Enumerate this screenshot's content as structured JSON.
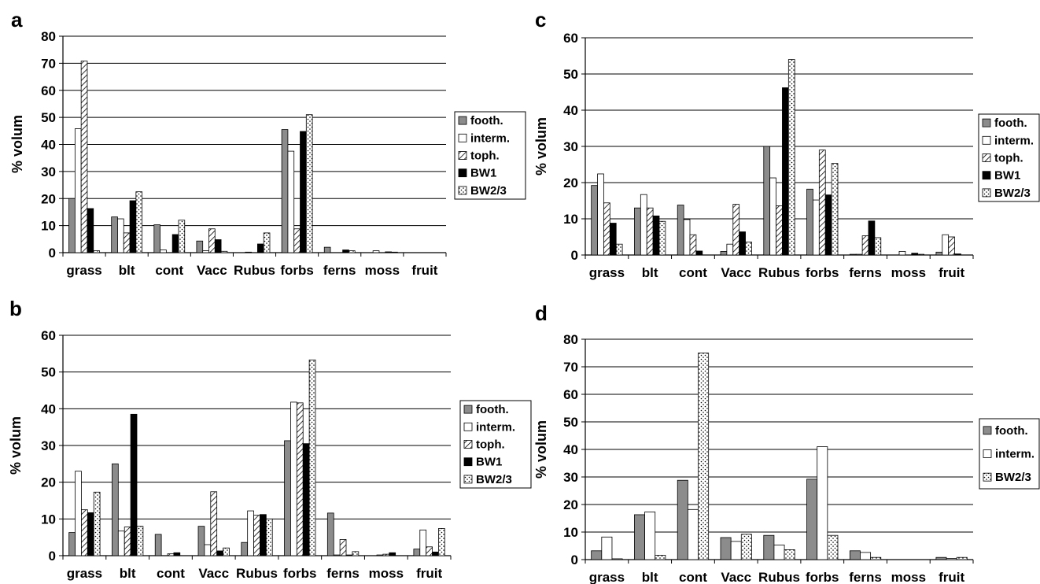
{
  "chart_data": [
    {
      "panel": "a",
      "type": "bar",
      "ylabel": "% volum",
      "ylim": [
        0,
        80
      ],
      "yticks": [
        0,
        10,
        20,
        30,
        40,
        50,
        60,
        70,
        80
      ],
      "categories": [
        "grass",
        "blt",
        "cont",
        "Vacc",
        "Rubus",
        "forbs",
        "ferns",
        "moss",
        "fruit"
      ],
      "grid": true,
      "legend_position": "right",
      "series": [
        {
          "name": "footh.",
          "values": [
            20.0,
            13.2,
            10.3,
            4.3,
            0.0,
            45.5,
            2.0,
            0.0,
            0.0
          ]
        },
        {
          "name": "interm.",
          "values": [
            45.8,
            12.5,
            1.0,
            0.7,
            0.2,
            37.5,
            0.0,
            0.7,
            0.0
          ]
        },
        {
          "name": "toph.",
          "values": [
            70.8,
            7.3,
            0.0,
            8.8,
            0.0,
            8.8,
            0.0,
            0.0,
            0.0
          ]
        },
        {
          "name": "BW1",
          "values": [
            16.3,
            19.2,
            6.7,
            4.8,
            3.2,
            44.8,
            1.0,
            0.3,
            0.0
          ]
        },
        {
          "name": "BW2/3",
          "values": [
            0.7,
            22.5,
            12.0,
            0.5,
            7.3,
            51.0,
            0.7,
            0.2,
            0.0
          ]
        }
      ]
    },
    {
      "panel": "b",
      "type": "bar",
      "ylabel": "% volum",
      "ylim": [
        0,
        60
      ],
      "yticks": [
        0,
        10,
        20,
        30,
        40,
        50,
        60
      ],
      "categories": [
        "grass",
        "blt",
        "cont",
        "Vacc",
        "Rubus",
        "forbs",
        "ferns",
        "moss",
        "fruit"
      ],
      "grid": true,
      "legend_position": "right",
      "series": [
        {
          "name": "footh.",
          "values": [
            6.3,
            25.0,
            5.8,
            8.0,
            3.6,
            31.3,
            11.6,
            0.0,
            1.8
          ]
        },
        {
          "name": "interm.",
          "values": [
            23.0,
            6.7,
            0.0,
            3.0,
            12.2,
            41.8,
            0.2,
            0.2,
            7.0
          ]
        },
        {
          "name": "toph.",
          "values": [
            12.5,
            7.8,
            0.5,
            17.4,
            11.0,
            41.6,
            4.4,
            0.4,
            2.4
          ]
        },
        {
          "name": "BW1",
          "values": [
            11.7,
            38.5,
            0.8,
            1.3,
            11.2,
            30.5,
            0.2,
            0.8,
            1.0
          ]
        },
        {
          "name": "BW2/3",
          "values": [
            17.3,
            8.0,
            0.0,
            2.1,
            10.0,
            53.3,
            1.1,
            0.0,
            7.4
          ]
        }
      ]
    },
    {
      "panel": "c",
      "type": "bar",
      "ylabel": "% volum",
      "ylim": [
        0,
        60
      ],
      "yticks": [
        0,
        10,
        20,
        30,
        40,
        50,
        60
      ],
      "categories": [
        "grass",
        "blt",
        "cont",
        "Vacc",
        "Rubus",
        "forbs",
        "ferns",
        "moss",
        "fruit"
      ],
      "grid": true,
      "legend_position": "right",
      "series": [
        {
          "name": "footh.",
          "values": [
            19.2,
            13.0,
            13.8,
            1.0,
            30.0,
            18.2,
            0.2,
            0.0,
            0.8
          ]
        },
        {
          "name": "interm.",
          "values": [
            22.4,
            16.7,
            9.8,
            3.0,
            21.3,
            15.2,
            0.2,
            1.0,
            5.6
          ]
        },
        {
          "name": "toph.",
          "values": [
            14.4,
            13.0,
            5.6,
            14.0,
            13.6,
            29.0,
            5.3,
            0.0,
            5.0
          ]
        },
        {
          "name": "BW1",
          "values": [
            8.8,
            10.8,
            1.1,
            6.4,
            46.2,
            16.6,
            9.4,
            0.5,
            0.3
          ]
        },
        {
          "name": "BW2/3",
          "values": [
            3.0,
            9.3,
            0.0,
            3.6,
            54.0,
            25.3,
            4.8,
            0.2,
            0.0
          ]
        }
      ]
    },
    {
      "panel": "d",
      "type": "bar",
      "ylabel": "% volum",
      "ylim": [
        0,
        80
      ],
      "yticks": [
        0,
        10,
        20,
        30,
        40,
        50,
        60,
        70,
        80
      ],
      "categories": [
        "grass",
        "blt",
        "cont",
        "Vacc",
        "Rubus",
        "forbs",
        "ferns",
        "moss",
        "fruit"
      ],
      "grid": true,
      "legend_position": "right",
      "series": [
        {
          "name": "footh.",
          "values": [
            3.2,
            16.3,
            28.8,
            8.0,
            8.8,
            29.2,
            3.2,
            0.0,
            0.8
          ]
        },
        {
          "name": "interm.",
          "values": [
            8.2,
            17.3,
            18.2,
            6.6,
            5.3,
            41.0,
            2.6,
            0.0,
            0.4
          ]
        },
        {
          "name": "BW2/3",
          "values": [
            0.3,
            1.6,
            75.0,
            9.2,
            3.6,
            8.8,
            0.8,
            0.0,
            0.8
          ]
        }
      ]
    }
  ],
  "series_styles": {
    "footh.": {
      "fill": "#8c8c8c",
      "pattern": "solid"
    },
    "interm.": {
      "fill": "#ffffff",
      "pattern": "solid"
    },
    "toph.": {
      "fill": "#ffffff",
      "pattern": "hatch"
    },
    "BW1": {
      "fill": "#000000",
      "pattern": "solid"
    },
    "BW2/3": {
      "fill": "#ffffff",
      "pattern": "dots"
    }
  }
}
